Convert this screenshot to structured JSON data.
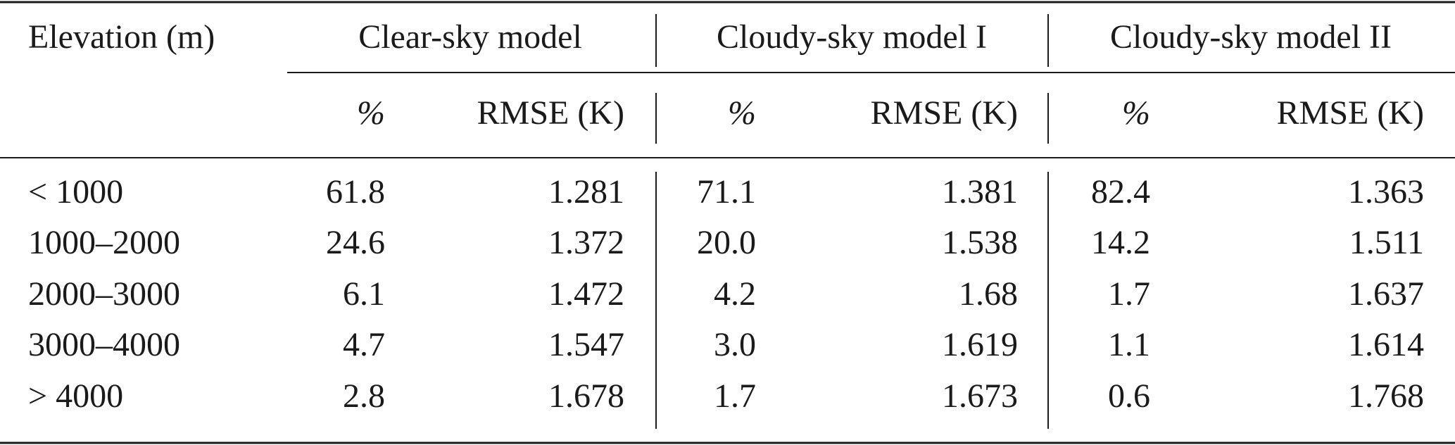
{
  "table": {
    "header": {
      "first": "Elevation (m)",
      "groups": [
        "Clear-sky model",
        "Cloudy-sky model I",
        "Cloudy-sky model II"
      ],
      "subheaders": [
        "%",
        "RMSE (K)",
        "%",
        "RMSE (K)",
        "%",
        "RMSE (K)"
      ]
    },
    "rows": [
      [
        "< 1000",
        "61.8",
        "1.281",
        "71.1",
        "1.381",
        "82.4",
        "1.363"
      ],
      [
        "1000–2000",
        "24.6",
        "1.372",
        "20.0",
        "1.538",
        "14.2",
        "1.511"
      ],
      [
        "2000–3000",
        "6.1",
        "1.472",
        "4.2",
        "1.68",
        "1.7",
        "1.637"
      ],
      [
        "3000–4000",
        "4.7",
        "1.547",
        "3.0",
        "1.619",
        "1.1",
        "1.614"
      ],
      [
        "> 4000",
        "2.8",
        "1.678",
        "1.7",
        "1.673",
        "0.6",
        "1.768"
      ]
    ]
  }
}
